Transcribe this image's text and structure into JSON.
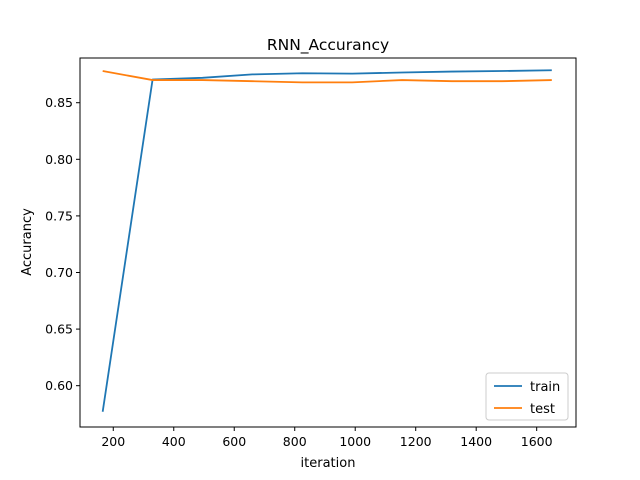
{
  "chart_data": {
    "type": "line",
    "title": "RNN_Accurancy",
    "xlabel": "iteration",
    "ylabel": "Accurancy",
    "xlim": [
      90,
      1730
    ],
    "ylim": [
      0.5635,
      0.8895
    ],
    "xticks": [
      200,
      400,
      600,
      800,
      1000,
      1200,
      1400,
      1600
    ],
    "yticks": [
      0.6,
      0.65,
      0.7,
      0.75,
      0.8,
      0.85
    ],
    "ytick_labels": [
      "0.60",
      "0.65",
      "0.70",
      "0.75",
      "0.80",
      "0.85"
    ],
    "grid": false,
    "legend_position": "lower-right",
    "series": [
      {
        "name": "train",
        "color": "#1f77b4",
        "x": [
          165,
          330,
          495,
          660,
          825,
          990,
          1155,
          1320,
          1485,
          1650
        ],
        "y": [
          0.577,
          0.8705,
          0.872,
          0.875,
          0.876,
          0.8757,
          0.8767,
          0.8775,
          0.878,
          0.8787
        ]
      },
      {
        "name": "test",
        "color": "#ff7f0e",
        "x": [
          165,
          330,
          495,
          660,
          825,
          990,
          1155,
          1320,
          1485,
          1650
        ],
        "y": [
          0.878,
          0.87,
          0.87,
          0.869,
          0.868,
          0.868,
          0.87,
          0.869,
          0.869,
          0.87
        ]
      }
    ]
  }
}
